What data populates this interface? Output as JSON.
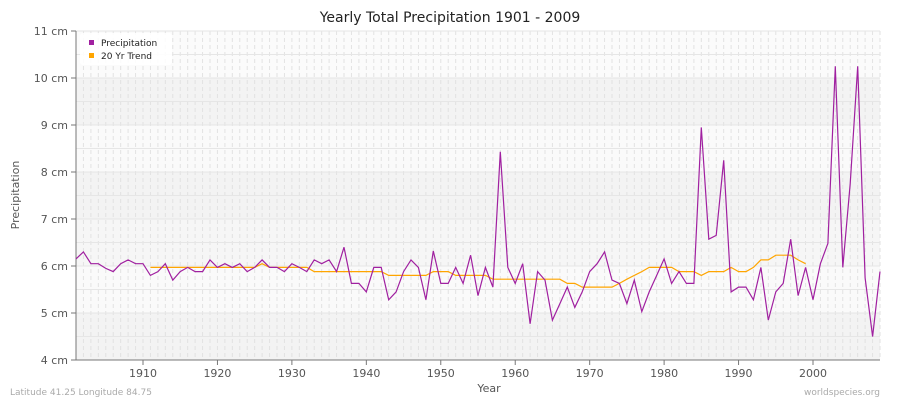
{
  "chart_data": {
    "type": "line",
    "title": "Yearly Total Precipitation 1901 - 2009",
    "xlabel": "Year",
    "ylabel": "Precipitation",
    "xlim": [
      1901,
      2009
    ],
    "ylim": [
      4,
      11
    ],
    "yticks": [
      {
        "v": 4,
        "label": "4 cm"
      },
      {
        "v": 5,
        "label": "5 cm"
      },
      {
        "v": 6,
        "label": "6 cm"
      },
      {
        "v": 7,
        "label": "7 cm"
      },
      {
        "v": 8,
        "label": "8 cm"
      },
      {
        "v": 9,
        "label": "9 cm"
      },
      {
        "v": 10,
        "label": "10 cm"
      },
      {
        "v": 11,
        "label": "11 cm"
      }
    ],
    "xticks": [
      1910,
      1920,
      1930,
      1940,
      1950,
      1960,
      1970,
      1980,
      1990,
      2000
    ],
    "grid": true,
    "legend": "top-left",
    "series": [
      {
        "name": "Precipitation",
        "color": "#a020a0",
        "start_year": 1901,
        "values": [
          6.15,
          6.3,
          6.05,
          6.05,
          5.95,
          5.88,
          6.05,
          6.13,
          6.05,
          6.05,
          5.8,
          5.88,
          6.05,
          5.7,
          5.88,
          5.97,
          5.88,
          5.88,
          6.13,
          5.97,
          6.05,
          5.97,
          6.05,
          5.88,
          5.97,
          6.13,
          5.97,
          5.97,
          5.88,
          6.05,
          5.97,
          5.88,
          6.13,
          6.05,
          6.13,
          5.88,
          6.4,
          5.63,
          5.63,
          5.45,
          5.97,
          5.97,
          5.28,
          5.45,
          5.88,
          6.13,
          5.97,
          5.28,
          6.32,
          5.63,
          5.63,
          5.97,
          5.63,
          6.23,
          5.37,
          5.97,
          5.55,
          8.43,
          5.97,
          5.63,
          6.05,
          4.77,
          5.88,
          5.7,
          4.85,
          5.2,
          5.55,
          5.12,
          5.45,
          5.88,
          6.05,
          6.3,
          5.7,
          5.63,
          5.2,
          5.7,
          5.03,
          5.45,
          5.8,
          6.15,
          5.63,
          5.88,
          5.63,
          5.63,
          8.95,
          6.57,
          6.65,
          8.25,
          5.45,
          5.55,
          5.55,
          5.28,
          5.97,
          4.85,
          5.45,
          5.63,
          6.57,
          5.37,
          5.97,
          5.28,
          6.05,
          6.48,
          10.25,
          5.97,
          7.75,
          10.25,
          5.75,
          4.5,
          5.88
        ]
      },
      {
        "name": "20 Yr Trend",
        "color": "#ffa500",
        "start_year": 1911,
        "values": [
          5.97,
          5.97,
          5.97,
          5.97,
          5.97,
          5.97,
          5.97,
          5.97,
          5.97,
          5.97,
          5.97,
          5.97,
          5.97,
          5.97,
          5.97,
          6.05,
          5.97,
          5.97,
          5.97,
          5.97,
          5.97,
          5.97,
          5.88,
          5.88,
          5.88,
          5.88,
          5.88,
          5.88,
          5.88,
          5.88,
          5.88,
          5.88,
          5.8,
          5.8,
          5.8,
          5.8,
          5.8,
          5.8,
          5.88,
          5.88,
          5.88,
          5.8,
          5.8,
          5.8,
          5.8,
          5.8,
          5.72,
          5.72,
          5.72,
          5.72,
          5.72,
          5.72,
          5.72,
          5.72,
          5.72,
          5.72,
          5.63,
          5.63,
          5.55,
          5.55,
          5.55,
          5.55,
          5.55,
          5.63,
          5.72,
          5.8,
          5.88,
          5.97,
          5.97,
          5.97,
          5.97,
          5.88,
          5.88,
          5.88,
          5.8,
          5.88,
          5.88,
          5.88,
          5.97,
          5.88,
          5.88,
          5.97,
          6.13,
          6.13,
          6.23,
          6.23,
          6.23,
          6.13,
          6.05
        ]
      }
    ]
  },
  "footer": {
    "left": "Latitude 41.25 Longitude 84.75",
    "right": "worldspecies.org"
  }
}
